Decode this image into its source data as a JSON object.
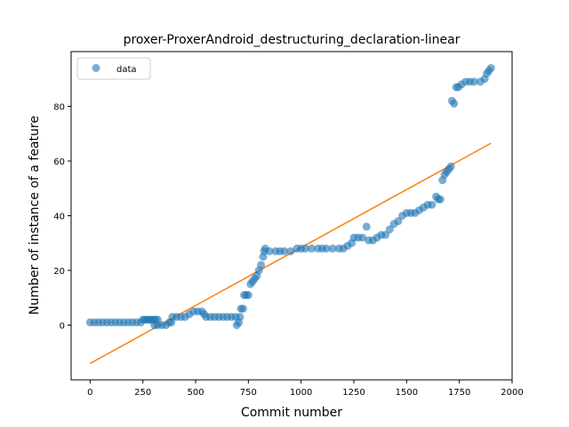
{
  "chart_data": {
    "type": "scatter",
    "title": "proxer-ProxerAndroid_destructuring_declaration-linear",
    "xlabel": "Commit number",
    "ylabel": "Number of instance of a feature",
    "xlim": [
      -90,
      2000
    ],
    "ylim": [
      -20,
      100
    ],
    "xticks": [
      0,
      250,
      500,
      750,
      1000,
      1250,
      1500,
      1750,
      2000
    ],
    "yticks": [
      0,
      20,
      40,
      60,
      80
    ],
    "grid": false,
    "legend": {
      "placement": "upper-left",
      "entries": [
        "data"
      ]
    },
    "colors": {
      "data": "#1f77b4",
      "fit": "#ff7f0e"
    },
    "series": [
      {
        "name": "data",
        "kind": "scatter",
        "points": [
          [
            0,
            1
          ],
          [
            20,
            1
          ],
          [
            40,
            1
          ],
          [
            60,
            1
          ],
          [
            80,
            1
          ],
          [
            100,
            1
          ],
          [
            120,
            1
          ],
          [
            140,
            1
          ],
          [
            160,
            1
          ],
          [
            180,
            1
          ],
          [
            200,
            1
          ],
          [
            220,
            1
          ],
          [
            240,
            1
          ],
          [
            250,
            2
          ],
          [
            260,
            2
          ],
          [
            270,
            2
          ],
          [
            280,
            2
          ],
          [
            290,
            2
          ],
          [
            300,
            2
          ],
          [
            310,
            2
          ],
          [
            320,
            2
          ],
          [
            305,
            0
          ],
          [
            320,
            0
          ],
          [
            340,
            0
          ],
          [
            360,
            0
          ],
          [
            375,
            1
          ],
          [
            385,
            1
          ],
          [
            390,
            3
          ],
          [
            410,
            3
          ],
          [
            430,
            3
          ],
          [
            450,
            3
          ],
          [
            470,
            4
          ],
          [
            490,
            5
          ],
          [
            510,
            5
          ],
          [
            530,
            5
          ],
          [
            540,
            4
          ],
          [
            550,
            3
          ],
          [
            570,
            3
          ],
          [
            590,
            3
          ],
          [
            610,
            3
          ],
          [
            630,
            3
          ],
          [
            650,
            3
          ],
          [
            670,
            3
          ],
          [
            690,
            3
          ],
          [
            695,
            0
          ],
          [
            705,
            1
          ],
          [
            710,
            3
          ],
          [
            715,
            6
          ],
          [
            725,
            6
          ],
          [
            730,
            11
          ],
          [
            740,
            11
          ],
          [
            750,
            11
          ],
          [
            760,
            15
          ],
          [
            770,
            16
          ],
          [
            780,
            17
          ],
          [
            790,
            18
          ],
          [
            800,
            20
          ],
          [
            810,
            22
          ],
          [
            820,
            25
          ],
          [
            825,
            27
          ],
          [
            830,
            28
          ],
          [
            850,
            27
          ],
          [
            880,
            27
          ],
          [
            900,
            27
          ],
          [
            920,
            27
          ],
          [
            950,
            27
          ],
          [
            980,
            28
          ],
          [
            1000,
            28
          ],
          [
            1020,
            28
          ],
          [
            1050,
            28
          ],
          [
            1080,
            28
          ],
          [
            1100,
            28
          ],
          [
            1120,
            28
          ],
          [
            1150,
            28
          ],
          [
            1180,
            28
          ],
          [
            1200,
            28
          ],
          [
            1220,
            29
          ],
          [
            1240,
            30
          ],
          [
            1250,
            32
          ],
          [
            1270,
            32
          ],
          [
            1290,
            32
          ],
          [
            1310,
            36
          ],
          [
            1320,
            31
          ],
          [
            1340,
            31
          ],
          [
            1360,
            32
          ],
          [
            1380,
            33
          ],
          [
            1400,
            33
          ],
          [
            1420,
            35
          ],
          [
            1440,
            37
          ],
          [
            1460,
            38
          ],
          [
            1480,
            40
          ],
          [
            1500,
            41
          ],
          [
            1520,
            41
          ],
          [
            1540,
            41
          ],
          [
            1560,
            42
          ],
          [
            1580,
            43
          ],
          [
            1600,
            44
          ],
          [
            1620,
            44
          ],
          [
            1640,
            47
          ],
          [
            1650,
            46
          ],
          [
            1660,
            46
          ],
          [
            1670,
            53
          ],
          [
            1680,
            55
          ],
          [
            1690,
            56
          ],
          [
            1700,
            57
          ],
          [
            1710,
            58
          ],
          [
            1715,
            82
          ],
          [
            1725,
            81
          ],
          [
            1735,
            87
          ],
          [
            1745,
            87
          ],
          [
            1760,
            88
          ],
          [
            1780,
            89
          ],
          [
            1800,
            89
          ],
          [
            1820,
            89
          ],
          [
            1850,
            89
          ],
          [
            1870,
            90
          ],
          [
            1880,
            92
          ],
          [
            1890,
            93
          ],
          [
            1900,
            94
          ]
        ]
      },
      {
        "name": "",
        "kind": "line",
        "points": [
          [
            0,
            -14
          ],
          [
            1900,
            66.5
          ]
        ]
      }
    ]
  }
}
